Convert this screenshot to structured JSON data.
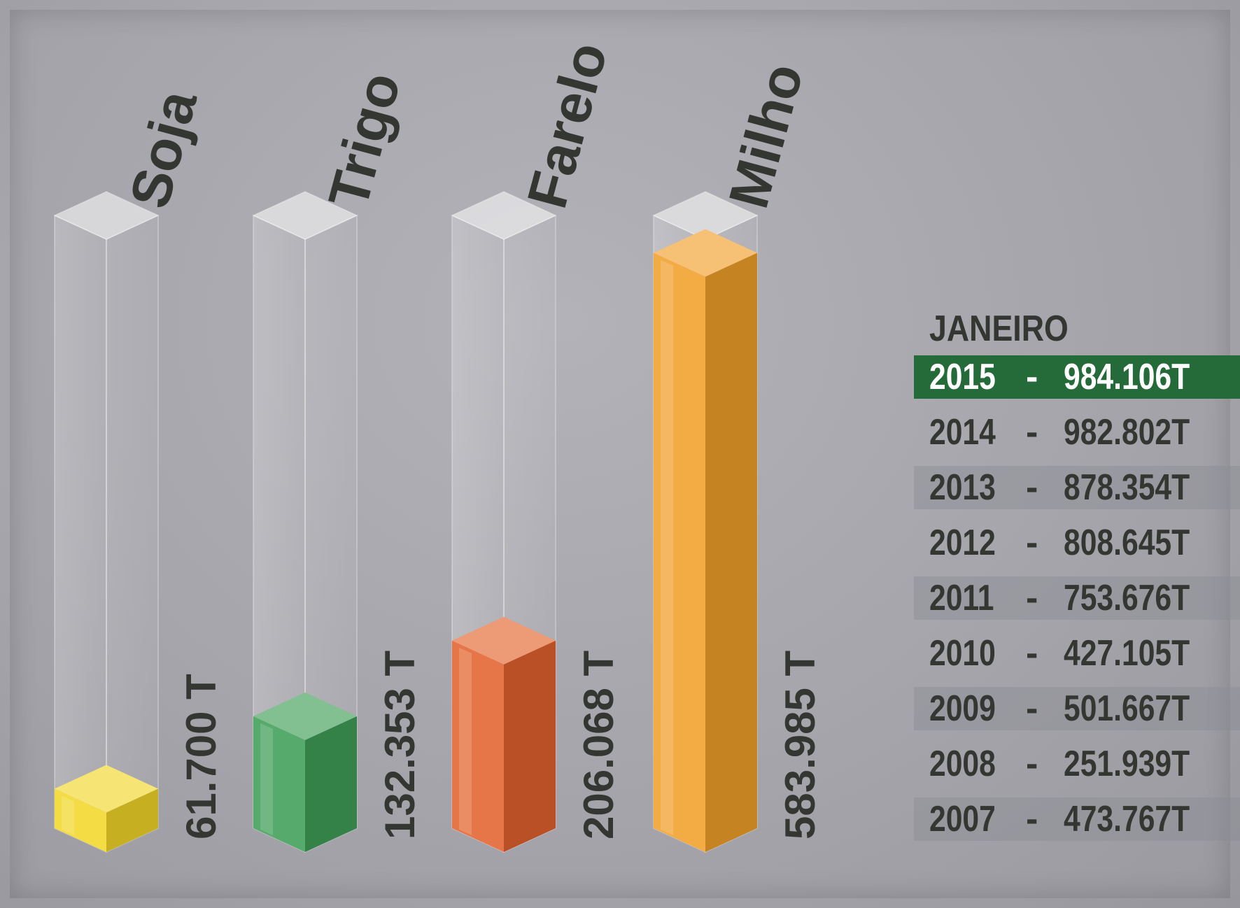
{
  "chart_data": {
    "type": "bar",
    "categories": [
      "Soja",
      "Trigo",
      "Farelo",
      "Milho"
    ],
    "values": [
      61.7,
      132.353,
      206.068,
      583.985
    ],
    "value_labels": [
      "61.700 T",
      "132.353 T",
      "206.068 T",
      "583.985 T"
    ],
    "colors": [
      "#f1d72a",
      "#3f9e58",
      "#e3632e",
      "#f1a02a"
    ],
    "ylim": [
      0,
      600
    ],
    "legend": "none",
    "grid": false
  },
  "table": {
    "title": "JANEIRO",
    "separator": "-",
    "rows": [
      {
        "year": "2015",
        "value": "984.106T"
      },
      {
        "year": "2014",
        "value": "982.802T"
      },
      {
        "year": "2013",
        "value": "878.354T"
      },
      {
        "year": "2012",
        "value": "808.645T"
      },
      {
        "year": "2011",
        "value": "753.676T"
      },
      {
        "year": "2010",
        "value": "427.105T"
      },
      {
        "year": "2009",
        "value": "501.667T"
      },
      {
        "year": "2008",
        "value": "251.939T"
      },
      {
        "year": "2007",
        "value": "473.767T"
      }
    ],
    "highlight_color": "#256b3a"
  }
}
